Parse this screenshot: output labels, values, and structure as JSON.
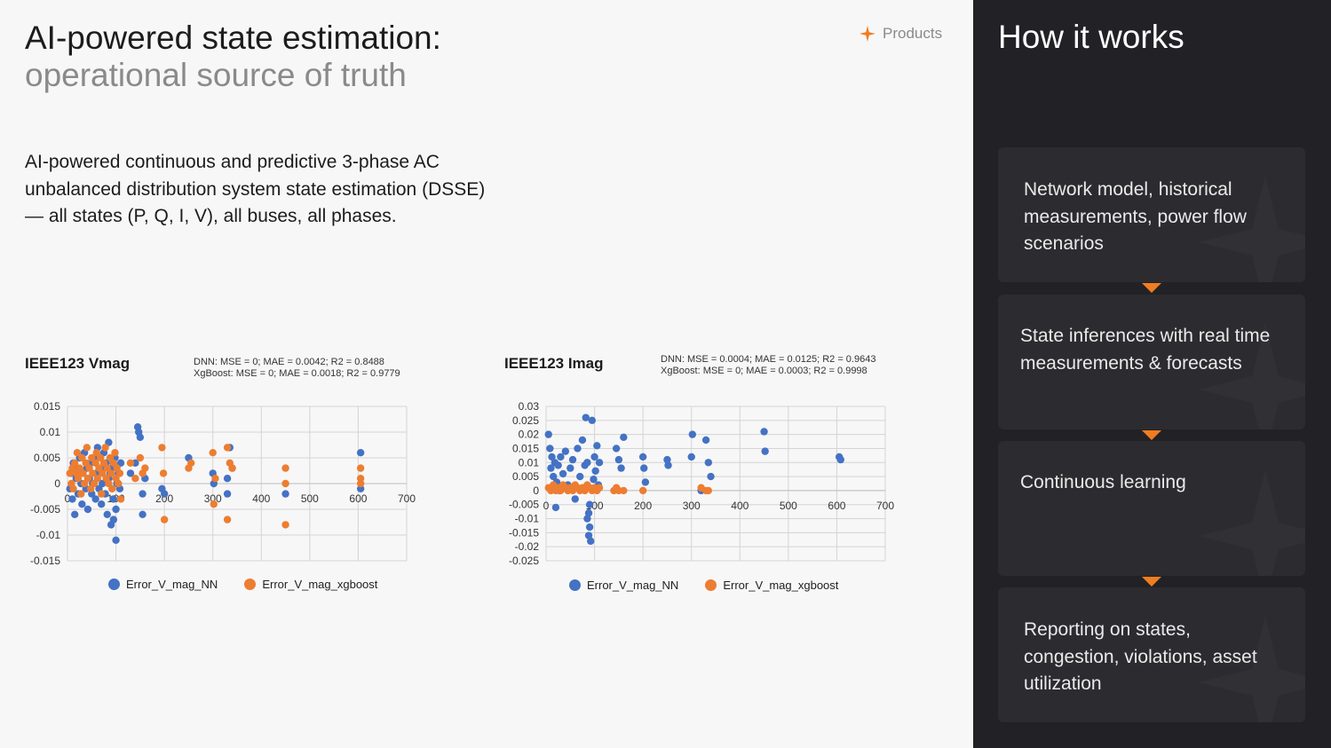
{
  "header": {
    "title_line1": "AI-powered state estimation:",
    "title_line2": "operational source of truth",
    "products_label": "Products",
    "accent_color": "#f07d20"
  },
  "description": "AI-powered continuous and predictive 3-phase AC unbalanced distribution system state estimation (DSSE) — all states (P, Q, I, V), all buses, all phases.",
  "chart_data": [
    {
      "type": "scatter",
      "title": "IEEE123 Vmag",
      "stats": [
        "DNN: MSE = 0; MAE = 0.0042; R2 = 0.8488",
        "XgBoost: MSE = 0; MAE = 0.0018; R2 = 0.9779"
      ],
      "xlim": [
        0,
        700
      ],
      "ylim": [
        -0.015,
        0.015
      ],
      "x_ticks": [
        "0",
        "100",
        "200",
        "300",
        "400",
        "500",
        "600",
        "700"
      ],
      "y_ticks": [
        "0.015",
        "0.01",
        "0.005",
        "0",
        "-0.005",
        "-0.01",
        "-0.015"
      ],
      "grid": true,
      "legend_position": "bottom",
      "series": [
        {
          "name": "Error_V_mag_NN",
          "color": "#4472c4",
          "points": [
            [
              5,
              -0.001
            ],
            [
              8,
              0.002
            ],
            [
              10,
              -0.003
            ],
            [
              12,
              0.004
            ],
            [
              15,
              -0.006
            ],
            [
              18,
              0.001
            ],
            [
              20,
              0.003
            ],
            [
              22,
              -0.002
            ],
            [
              25,
              0.005
            ],
            [
              28,
              0.0
            ],
            [
              30,
              -0.004
            ],
            [
              32,
              0.002
            ],
            [
              35,
              0.006
            ],
            [
              38,
              -0.001
            ],
            [
              40,
              0.003
            ],
            [
              42,
              -0.005
            ],
            [
              45,
              0.001
            ],
            [
              48,
              0.004
            ],
            [
              50,
              -0.002
            ],
            [
              52,
              0.0
            ],
            [
              55,
              0.005
            ],
            [
              58,
              -0.003
            ],
            [
              60,
              0.002
            ],
            [
              62,
              0.007
            ],
            [
              65,
              -0.001
            ],
            [
              68,
              0.003
            ],
            [
              70,
              -0.004
            ],
            [
              72,
              0.0
            ],
            [
              75,
              0.006
            ],
            [
              78,
              -0.002
            ],
            [
              80,
              0.004
            ],
            [
              82,
              -0.006
            ],
            [
              85,
              0.001
            ],
            [
              88,
              0.002
            ],
            [
              90,
              -0.008
            ],
            [
              92,
              0.003
            ],
            [
              95,
              -0.003
            ],
            [
              98,
              0.005
            ],
            [
              100,
              -0.005
            ],
            [
              102,
              0.0
            ],
            [
              105,
              0.002
            ],
            [
              108,
              -0.001
            ],
            [
              110,
              0.004
            ],
            [
              100,
              -0.011
            ],
            [
              95,
              -0.007
            ],
            [
              85,
              0.008
            ],
            [
              130,
              0.002
            ],
            [
              140,
              0.004
            ],
            [
              145,
              0.011
            ],
            [
              147,
              0.01
            ],
            [
              150,
              0.009
            ],
            [
              155,
              -0.002
            ],
            [
              160,
              0.001
            ],
            [
              155,
              -0.006
            ],
            [
              195,
              -0.001
            ],
            [
              200,
              -0.002
            ],
            [
              250,
              0.005
            ],
            [
              300,
              0.002
            ],
            [
              302,
              0.0
            ],
            [
              330,
              -0.002
            ],
            [
              335,
              0.007
            ],
            [
              340,
              0.003
            ],
            [
              330,
              0.001
            ],
            [
              450,
              -0.002
            ],
            [
              605,
              0.006
            ],
            [
              605,
              -0.001
            ]
          ]
        },
        {
          "name": "Error_V_mag_xgboost",
          "color": "#ed7d31",
          "points": [
            [
              5,
              0.002
            ],
            [
              8,
              0.0
            ],
            [
              10,
              0.003
            ],
            [
              12,
              -0.001
            ],
            [
              15,
              0.004
            ],
            [
              18,
              0.002
            ],
            [
              20,
              0.006
            ],
            [
              22,
              0.001
            ],
            [
              25,
              0.003
            ],
            [
              28,
              -0.002
            ],
            [
              30,
              0.005
            ],
            [
              32,
              0.002
            ],
            [
              35,
              0.0
            ],
            [
              38,
              0.004
            ],
            [
              40,
              0.007
            ],
            [
              42,
              0.001
            ],
            [
              45,
              0.003
            ],
            [
              48,
              -0.001
            ],
            [
              50,
              0.005
            ],
            [
              52,
              0.002
            ],
            [
              55,
              0.0
            ],
            [
              58,
              0.004
            ],
            [
              60,
              0.006
            ],
            [
              62,
              0.001
            ],
            [
              65,
              0.003
            ],
            [
              68,
              0.005
            ],
            [
              70,
              -0.002
            ],
            [
              72,
              0.002
            ],
            [
              75,
              0.004
            ],
            [
              78,
              0.007
            ],
            [
              80,
              0.001
            ],
            [
              82,
              0.003
            ],
            [
              85,
              0.0
            ],
            [
              88,
              0.005
            ],
            [
              90,
              0.002
            ],
            [
              92,
              -0.001
            ],
            [
              95,
              0.004
            ],
            [
              98,
              0.006
            ],
            [
              100,
              0.001
            ],
            [
              102,
              0.003
            ],
            [
              105,
              0.0
            ],
            [
              108,
              0.002
            ],
            [
              110,
              -0.003
            ],
            [
              130,
              0.004
            ],
            [
              140,
              0.001
            ],
            [
              150,
              0.005
            ],
            [
              155,
              0.002
            ],
            [
              160,
              0.003
            ],
            [
              195,
              0.007
            ],
            [
              198,
              0.002
            ],
            [
              200,
              -0.007
            ],
            [
              250,
              0.003
            ],
            [
              255,
              0.004
            ],
            [
              300,
              0.006
            ],
            [
              302,
              -0.004
            ],
            [
              305,
              0.001
            ],
            [
              330,
              0.007
            ],
            [
              335,
              0.004
            ],
            [
              340,
              0.003
            ],
            [
              330,
              -0.007
            ],
            [
              450,
              0.003
            ],
            [
              450,
              0.0
            ],
            [
              450,
              -0.008
            ],
            [
              605,
              0.003
            ],
            [
              605,
              0.001
            ],
            [
              605,
              0.0
            ]
          ]
        }
      ]
    },
    {
      "type": "scatter",
      "title": "IEEE123 Imag",
      "stats": [
        "DNN: MSE = 0.0004; MAE = 0.0125; R2 = 0.9643",
        "XgBoost: MSE = 0; MAE = 0.0003; R2 = 0.9998"
      ],
      "xlim": [
        0,
        700
      ],
      "ylim": [
        -0.025,
        0.03
      ],
      "x_ticks": [
        "0",
        "100",
        "200",
        "300",
        "400",
        "500",
        "600",
        "700"
      ],
      "y_ticks": [
        "0.03",
        "0.025",
        "0.02",
        "0.015",
        "0.01",
        "0.005",
        "0",
        "-0.005",
        "-0.01",
        "-0.015",
        "-0.02",
        "-0.025"
      ],
      "grid": true,
      "legend_position": "bottom",
      "series": [
        {
          "name": "Error_V_mag_NN",
          "color": "#4472c4",
          "points": [
            [
              5,
              0.02
            ],
            [
              8,
              0.015
            ],
            [
              10,
              0.008
            ],
            [
              12,
              0.012
            ],
            [
              15,
              0.005
            ],
            [
              18,
              0.01
            ],
            [
              20,
              -0.006
            ],
            [
              22,
              0.003
            ],
            [
              25,
              0.009
            ],
            [
              28,
              0.0
            ],
            [
              30,
              0.012
            ],
            [
              35,
              0.006
            ],
            [
              40,
              0.014
            ],
            [
              45,
              0.002
            ],
            [
              50,
              0.008
            ],
            [
              55,
              0.011
            ],
            [
              60,
              -0.003
            ],
            [
              65,
              0.015
            ],
            [
              70,
              0.005
            ],
            [
              75,
              0.018
            ],
            [
              80,
              0.009
            ],
            [
              82,
              0.026
            ],
            [
              85,
              0.01
            ],
            [
              88,
              -0.008
            ],
            [
              90,
              -0.013
            ],
            [
              92,
              -0.018
            ],
            [
              95,
              0.025
            ],
            [
              98,
              0.004
            ],
            [
              100,
              0.012
            ],
            [
              102,
              0.007
            ],
            [
              105,
              0.016
            ],
            [
              108,
              0.002
            ],
            [
              110,
              0.01
            ],
            [
              85,
              -0.01
            ],
            [
              88,
              -0.016
            ],
            [
              90,
              -0.005
            ],
            [
              145,
              0.015
            ],
            [
              150,
              0.011
            ],
            [
              155,
              0.008
            ],
            [
              160,
              0.019
            ],
            [
              200,
              0.012
            ],
            [
              202,
              0.008
            ],
            [
              205,
              0.003
            ],
            [
              250,
              0.011
            ],
            [
              252,
              0.009
            ],
            [
              300,
              0.012
            ],
            [
              302,
              0.02
            ],
            [
              330,
              0.018
            ],
            [
              335,
              0.01
            ],
            [
              340,
              0.005
            ],
            [
              320,
              0.0
            ],
            [
              450,
              0.021
            ],
            [
              452,
              0.014
            ],
            [
              605,
              0.012
            ],
            [
              608,
              0.011
            ]
          ]
        },
        {
          "name": "Error_V_mag_xgboost",
          "color": "#ed7d31",
          "points": [
            [
              5,
              0.001
            ],
            [
              10,
              0.0
            ],
            [
              15,
              0.002
            ],
            [
              20,
              0.0
            ],
            [
              25,
              0.001
            ],
            [
              30,
              0.0
            ],
            [
              35,
              0.002
            ],
            [
              40,
              0.001
            ],
            [
              45,
              0.0
            ],
            [
              50,
              0.001
            ],
            [
              55,
              0.0
            ],
            [
              60,
              0.002
            ],
            [
              65,
              0.001
            ],
            [
              70,
              0.0
            ],
            [
              75,
              0.001
            ],
            [
              80,
              0.0
            ],
            [
              85,
              0.002
            ],
            [
              90,
              0.001
            ],
            [
              95,
              0.0
            ],
            [
              100,
              0.001
            ],
            [
              105,
              0.0
            ],
            [
              110,
              0.001
            ],
            [
              140,
              0.0
            ],
            [
              145,
              0.001
            ],
            [
              150,
              0.0
            ],
            [
              160,
              0.0
            ],
            [
              200,
              0.0
            ],
            [
              320,
              0.001
            ],
            [
              330,
              0.0
            ],
            [
              335,
              0.0
            ]
          ]
        }
      ]
    }
  ],
  "how_it_works": {
    "title": "How it works",
    "steps": [
      {
        "text": "Network model, historical measurements, power flow scenarios"
      },
      {
        "text": "State inferences with real time measurements & forecasts"
      },
      {
        "text": "Continuous learning"
      },
      {
        "text": "Reporting on states, congestion, violations, asset utilization"
      }
    ]
  }
}
